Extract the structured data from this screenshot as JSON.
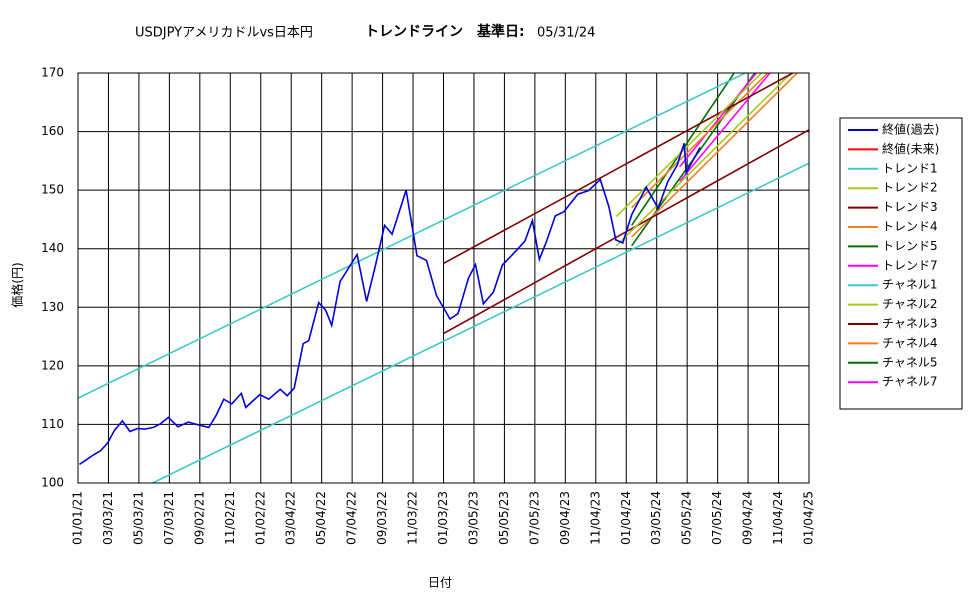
{
  "chart_data": {
    "type": "line",
    "title": "USDJPYアメリカドルvs日本円",
    "subtitle": "トレンドライン　基準日:",
    "base_date": "05/31/24",
    "x_label": "日付",
    "y_label": "価格(円)",
    "xlim": [
      "01/01/21",
      "01/04/25"
    ],
    "xticks": [
      "01/01/21",
      "03/03/21",
      "05/03/21",
      "07/03/21",
      "09/02/21",
      "11/02/21",
      "01/02/22",
      "03/04/22",
      "05/04/22",
      "07/04/22",
      "09/03/22",
      "11/03/22",
      "01/03/23",
      "03/05/23",
      "05/05/23",
      "07/05/23",
      "09/04/23",
      "11/04/23",
      "01/04/24",
      "03/05/24",
      "05/05/24",
      "07/05/24",
      "09/04/24",
      "11/04/24",
      "01/04/25"
    ],
    "ylim": [
      100,
      170
    ],
    "yticks": [
      100,
      110,
      120,
      130,
      140,
      150,
      160,
      170
    ],
    "grid": true,
    "legend": "right",
    "series": [
      {
        "name": "終値(過去)",
        "color": "#0000dd",
        "x": [
          "01/04/21",
          "01/15/21",
          "02/01/21",
          "02/15/21",
          "03/01/21",
          "03/15/21",
          "03/31/21",
          "04/15/21",
          "04/30/21",
          "05/15/21",
          "06/01/21",
          "06/15/21",
          "07/01/21",
          "07/20/21",
          "08/10/21",
          "08/31/21",
          "09/20/21",
          "10/05/21",
          "10/20/21",
          "11/05/21",
          "11/24/21",
          "12/03/21",
          "12/31/21",
          "01/18/22",
          "02/10/22",
          "02/24/22",
          "03/10/22",
          "03/28/22",
          "04/08/22",
          "04/28/22",
          "05/12/22",
          "05/24/22",
          "06/10/22",
          "06/22/22",
          "07/14/22",
          "08/02/22",
          "08/19/22",
          "09/07/22",
          "09/22/22",
          "10/20/22",
          "10/28/22",
          "11/11/22",
          "11/30/22",
          "12/20/22",
          "01/16/23",
          "02/01/23",
          "02/22/23",
          "03/08/23",
          "03/24/23",
          "04/13/23",
          "05/01/23",
          "05/30/23",
          "06/15/23",
          "06/30/23",
          "07/14/23",
          "07/28/23",
          "08/15/23",
          "09/01/23",
          "09/29/23",
          "10/20/23",
          "11/13/23",
          "11/30/23",
          "12/14/23",
          "12/28/23",
          "01/15/24",
          "02/13/24",
          "03/08/24",
          "03/27/24",
          "04/15/24",
          "04/29/24",
          "05/03/24",
          "05/31/24"
        ],
        "values": [
          103.2,
          103.8,
          104.8,
          105.5,
          106.8,
          109.0,
          110.6,
          108.8,
          109.3,
          109.2,
          109.5,
          110.1,
          111.2,
          109.6,
          110.4,
          109.9,
          109.5,
          111.6,
          114.3,
          113.5,
          115.3,
          112.9,
          115.1,
          114.3,
          116.0,
          114.9,
          116.2,
          123.8,
          124.3,
          130.8,
          129.5,
          126.9,
          134.4,
          136.0,
          139.0,
          131.0,
          136.9,
          144.0,
          142.5,
          150.0,
          146.0,
          138.8,
          138.0,
          132.0,
          128.0,
          128.9,
          135.0,
          137.3,
          130.6,
          132.6,
          137.2,
          139.8,
          141.3,
          144.8,
          138.2,
          141.2,
          145.6,
          146.3,
          149.3,
          149.9,
          151.8,
          147.2,
          141.5,
          141.0,
          145.8,
          150.5,
          146.9,
          151.4,
          154.3,
          158.0,
          153.0,
          157.3
        ]
      },
      {
        "name": "終値(未来)",
        "color": "#ff0000",
        "x": [],
        "values": []
      },
      {
        "name": "トレンド1",
        "color": "#40c8c8",
        "x": [
          "01/01/21",
          "01/04/25"
        ],
        "values": [
          114.5,
          175.3
        ]
      },
      {
        "name": "トレンド2",
        "color": "#a8c820",
        "x": [
          "12/15/23",
          "01/04/25"
        ],
        "values": [
          145.5,
          178
        ]
      },
      {
        "name": "トレンド3",
        "color": "#800000",
        "x": [
          "01/03/23",
          "01/04/25"
        ],
        "values": [
          137.5,
          171.5
        ]
      },
      {
        "name": "トレンド4",
        "color": "#f08020",
        "x": [
          "01/15/24",
          "01/04/25"
        ],
        "values": [
          147,
          177
        ]
      },
      {
        "name": "トレンド5",
        "color": "#007000",
        "x": [
          "01/15/24",
          "01/04/25"
        ],
        "values": [
          144,
          189
        ]
      },
      {
        "name": "トレンド7",
        "color": "#ff00ff",
        "x": [
          "04/20/24",
          "01/04/25"
        ],
        "values": [
          154,
          181
        ]
      },
      {
        "name": "チャネル1",
        "color": "#40c8c8",
        "x": [
          "01/01/21",
          "01/04/25"
        ],
        "values": [
          93.8,
          154.6
        ]
      },
      {
        "name": "チャネル2",
        "color": "#a8c820",
        "x": [
          "12/15/23",
          "01/04/25"
        ],
        "values": [
          140.5,
          173
        ]
      },
      {
        "name": "チャネル3",
        "color": "#800000",
        "x": [
          "01/03/23",
          "01/04/25"
        ],
        "values": [
          125.5,
          160.3
        ]
      },
      {
        "name": "チャネル4",
        "color": "#f08020",
        "x": [
          "01/15/24",
          "01/04/25"
        ],
        "values": [
          142,
          172
        ]
      },
      {
        "name": "チャネル5",
        "color": "#007000",
        "x": [
          "01/15/24",
          "01/04/25"
        ],
        "values": [
          140.5,
          183
        ]
      },
      {
        "name": "チャネル7",
        "color": "#ff00ff",
        "x": [
          "04/20/24",
          "01/04/25"
        ],
        "values": [
          151.5,
          178
        ]
      }
    ]
  }
}
